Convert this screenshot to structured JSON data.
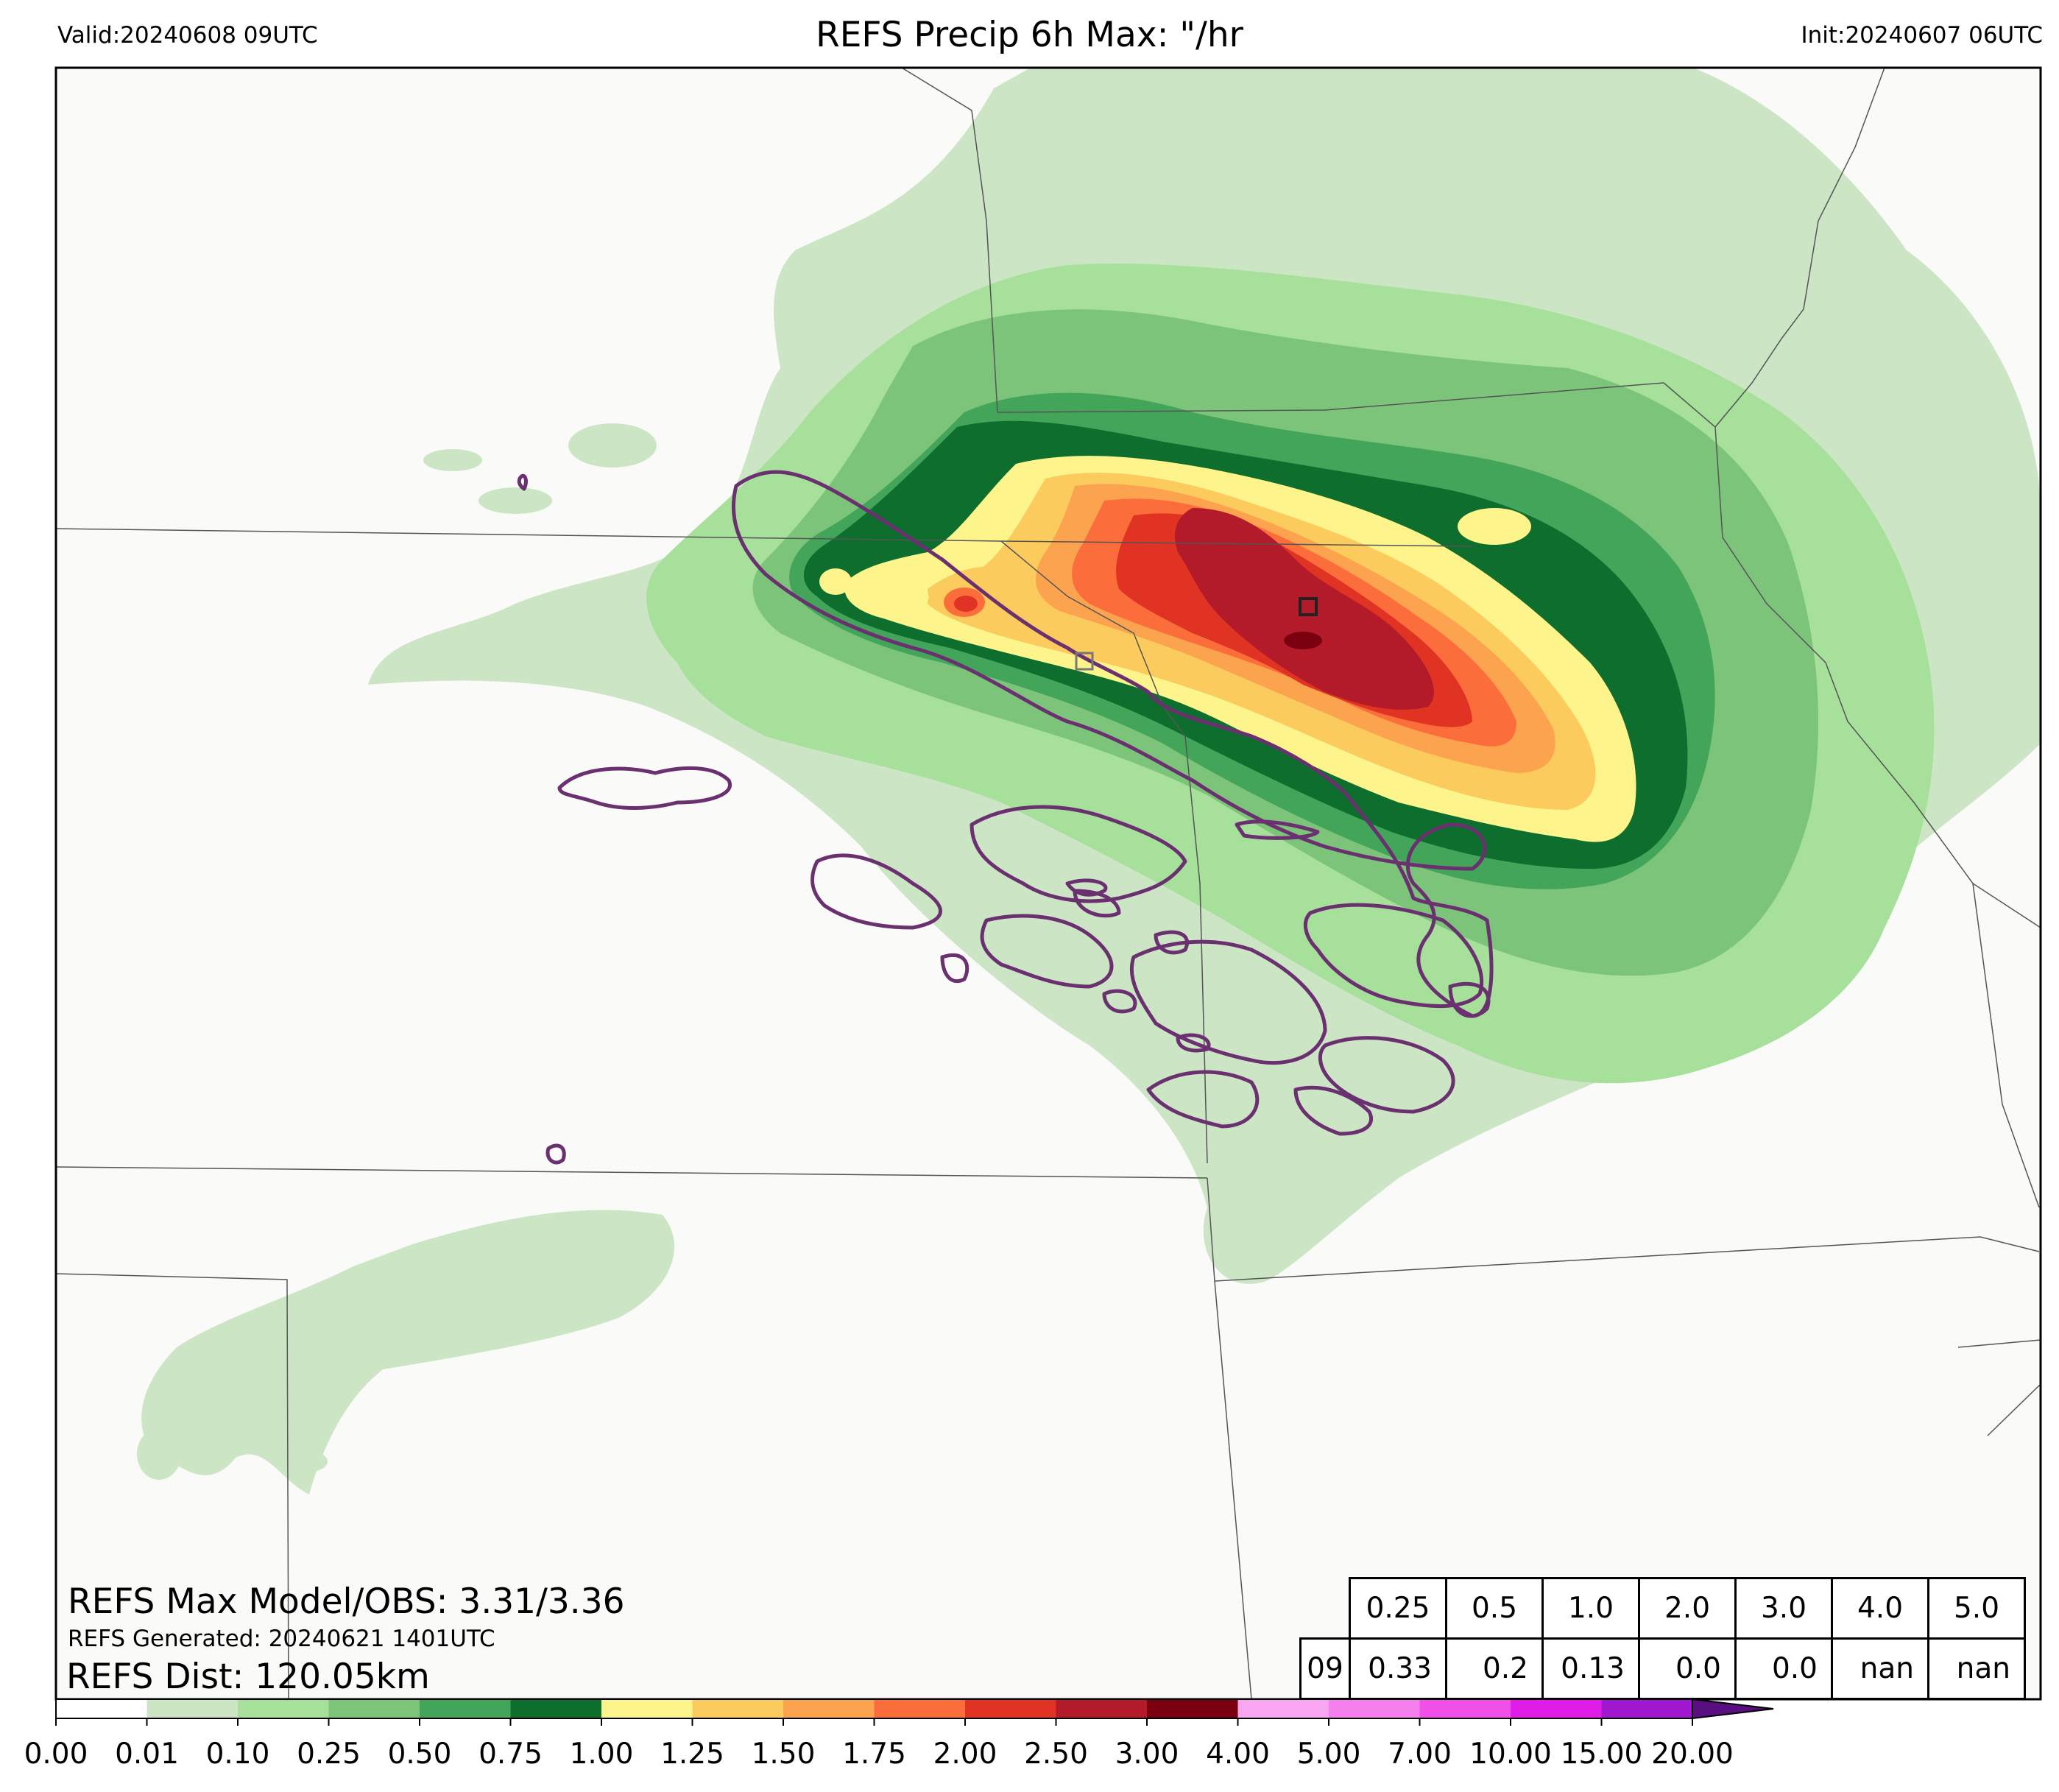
{
  "header": {
    "valid": "Valid:20240608 09UTC",
    "title": "REFS Precip 6h Max: \"/hr",
    "init": "Init:20240607 06UTC"
  },
  "overlay": {
    "max_model_obs": "REFS Max Model/OBS: 3.31/3.36",
    "generated": "REFS Generated: 20240621 1401UTC",
    "distance": "REFS Dist: 120.05km"
  },
  "stats_table": {
    "row_label": "09",
    "thresholds": [
      "0.25",
      "0.5",
      "1.0",
      "2.0",
      "3.0",
      "4.0",
      "5.0"
    ],
    "values": [
      "0.33",
      "0.2",
      "0.13",
      "0.0",
      "0.0",
      "nan",
      "nan"
    ]
  },
  "colorbar": {
    "ticks": [
      "0.00",
      "0.01",
      "0.10",
      "0.25",
      "0.50",
      "0.75",
      "1.00",
      "1.25",
      "1.50",
      "1.75",
      "2.00",
      "2.50",
      "3.00",
      "4.00",
      "5.00",
      "7.00",
      "10.00",
      "15.00",
      "20.00"
    ],
    "colors": [
      "#ffffff",
      "#cce6c5",
      "#a6e09a",
      "#7cc47a",
      "#42a55a",
      "#0e6e2e",
      "#fdf58c",
      "#fccb5e",
      "#fca350",
      "#fb6e3c",
      "#e03324",
      "#b31a2a",
      "#7a0010",
      "#f9a6f2",
      "#f67ff0",
      "#f050e8",
      "#e01ce8",
      "#a018d0",
      "#5a0f80"
    ]
  },
  "colors": {
    "background": "#fafaf8",
    "state_lines": "#555555",
    "obs_contour": "#6a3070",
    "model_marker": "#222222",
    "obs_marker": "#777777"
  }
}
